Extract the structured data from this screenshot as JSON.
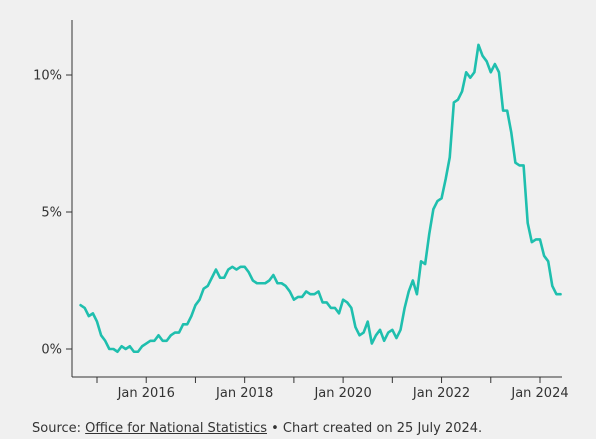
{
  "chart_data": {
    "type": "line",
    "title": "",
    "xlabel": "",
    "ylabel": "",
    "ylim": [
      -1,
      12
    ],
    "y_ticks": [
      {
        "value": 0,
        "label": "0%"
      },
      {
        "value": 5,
        "label": "5%"
      },
      {
        "value": 10,
        "label": "10%"
      }
    ],
    "x_range": [
      "2015-01",
      "2024-06"
    ],
    "x_ticks": [
      {
        "date": "2015-01",
        "label": ""
      },
      {
        "date": "2016-01",
        "label": "Jan 2016"
      },
      {
        "date": "2017-01",
        "label": ""
      },
      {
        "date": "2018-01",
        "label": "Jan 2018"
      },
      {
        "date": "2019-01",
        "label": ""
      },
      {
        "date": "2020-01",
        "label": "Jan 2020"
      },
      {
        "date": "2021-01",
        "label": ""
      },
      {
        "date": "2022-01",
        "label": "Jan 2022"
      },
      {
        "date": "2023-01",
        "label": ""
      },
      {
        "date": "2024-01",
        "label": "Jan 2024"
      }
    ],
    "grid": false,
    "line_color": "#1fbfae",
    "series": [
      {
        "name": "",
        "points": [
          [
            "2014-09",
            1.6
          ],
          [
            "2014-10",
            1.5
          ],
          [
            "2014-11",
            1.2
          ],
          [
            "2014-12",
            1.3
          ],
          [
            "2015-01",
            1.0
          ],
          [
            "2015-02",
            0.5
          ],
          [
            "2015-03",
            0.3
          ],
          [
            "2015-04",
            0.0
          ],
          [
            "2015-05",
            0.0
          ],
          [
            "2015-06",
            -0.1
          ],
          [
            "2015-07",
            0.1
          ],
          [
            "2015-08",
            0.0
          ],
          [
            "2015-09",
            0.1
          ],
          [
            "2015-10",
            -0.1
          ],
          [
            "2015-11",
            -0.1
          ],
          [
            "2015-12",
            0.1
          ],
          [
            "2016-01",
            0.2
          ],
          [
            "2016-02",
            0.3
          ],
          [
            "2016-03",
            0.3
          ],
          [
            "2016-04",
            0.5
          ],
          [
            "2016-05",
            0.3
          ],
          [
            "2016-06",
            0.3
          ],
          [
            "2016-07",
            0.5
          ],
          [
            "2016-08",
            0.6
          ],
          [
            "2016-09",
            0.6
          ],
          [
            "2016-10",
            0.9
          ],
          [
            "2016-11",
            0.9
          ],
          [
            "2016-12",
            1.2
          ],
          [
            "2017-01",
            1.6
          ],
          [
            "2017-02",
            1.8
          ],
          [
            "2017-03",
            2.2
          ],
          [
            "2017-04",
            2.3
          ],
          [
            "2017-05",
            2.6
          ],
          [
            "2017-06",
            2.9
          ],
          [
            "2017-07",
            2.6
          ],
          [
            "2017-08",
            2.6
          ],
          [
            "2017-09",
            2.9
          ],
          [
            "2017-10",
            3.0
          ],
          [
            "2017-11",
            2.9
          ],
          [
            "2017-12",
            3.0
          ],
          [
            "2018-01",
            3.0
          ],
          [
            "2018-02",
            2.8
          ],
          [
            "2018-03",
            2.5
          ],
          [
            "2018-04",
            2.4
          ],
          [
            "2018-05",
            2.4
          ],
          [
            "2018-06",
            2.4
          ],
          [
            "2018-07",
            2.5
          ],
          [
            "2018-08",
            2.7
          ],
          [
            "2018-09",
            2.4
          ],
          [
            "2018-10",
            2.4
          ],
          [
            "2018-11",
            2.3
          ],
          [
            "2018-12",
            2.1
          ],
          [
            "2019-01",
            1.8
          ],
          [
            "2019-02",
            1.9
          ],
          [
            "2019-03",
            1.9
          ],
          [
            "2019-04",
            2.1
          ],
          [
            "2019-05",
            2.0
          ],
          [
            "2019-06",
            2.0
          ],
          [
            "2019-07",
            2.1
          ],
          [
            "2019-08",
            1.7
          ],
          [
            "2019-09",
            1.7
          ],
          [
            "2019-10",
            1.5
          ],
          [
            "2019-11",
            1.5
          ],
          [
            "2019-12",
            1.3
          ],
          [
            "2020-01",
            1.8
          ],
          [
            "2020-02",
            1.7
          ],
          [
            "2020-03",
            1.5
          ],
          [
            "2020-04",
            0.8
          ],
          [
            "2020-05",
            0.5
          ],
          [
            "2020-06",
            0.6
          ],
          [
            "2020-07",
            1.0
          ],
          [
            "2020-08",
            0.2
          ],
          [
            "2020-09",
            0.5
          ],
          [
            "2020-10",
            0.7
          ],
          [
            "2020-11",
            0.3
          ],
          [
            "2020-12",
            0.6
          ],
          [
            "2021-01",
            0.7
          ],
          [
            "2021-02",
            0.4
          ],
          [
            "2021-03",
            0.7
          ],
          [
            "2021-04",
            1.5
          ],
          [
            "2021-05",
            2.1
          ],
          [
            "2021-06",
            2.5
          ],
          [
            "2021-07",
            2.0
          ],
          [
            "2021-08",
            3.2
          ],
          [
            "2021-09",
            3.1
          ],
          [
            "2021-10",
            4.2
          ],
          [
            "2021-11",
            5.1
          ],
          [
            "2021-12",
            5.4
          ],
          [
            "2022-01",
            5.5
          ],
          [
            "2022-02",
            6.2
          ],
          [
            "2022-03",
            7.0
          ],
          [
            "2022-04",
            9.0
          ],
          [
            "2022-05",
            9.1
          ],
          [
            "2022-06",
            9.4
          ],
          [
            "2022-07",
            10.1
          ],
          [
            "2022-08",
            9.9
          ],
          [
            "2022-09",
            10.1
          ],
          [
            "2022-10",
            11.1
          ],
          [
            "2022-11",
            10.7
          ],
          [
            "2022-12",
            10.5
          ],
          [
            "2023-01",
            10.1
          ],
          [
            "2023-02",
            10.4
          ],
          [
            "2023-03",
            10.1
          ],
          [
            "2023-04",
            8.7
          ],
          [
            "2023-05",
            8.7
          ],
          [
            "2023-06",
            7.9
          ],
          [
            "2023-07",
            6.8
          ],
          [
            "2023-08",
            6.7
          ],
          [
            "2023-09",
            6.7
          ],
          [
            "2023-10",
            4.6
          ],
          [
            "2023-11",
            3.9
          ],
          [
            "2023-12",
            4.0
          ],
          [
            "2024-01",
            4.0
          ],
          [
            "2024-02",
            3.4
          ],
          [
            "2024-03",
            3.2
          ],
          [
            "2024-04",
            2.3
          ],
          [
            "2024-05",
            2.0
          ],
          [
            "2024-06",
            2.0
          ]
        ]
      }
    ]
  },
  "footer": {
    "source_prefix": "Source: ",
    "source_link": "Office for National Statistics",
    "source_suffix": " • Chart created on 25 July 2024."
  }
}
